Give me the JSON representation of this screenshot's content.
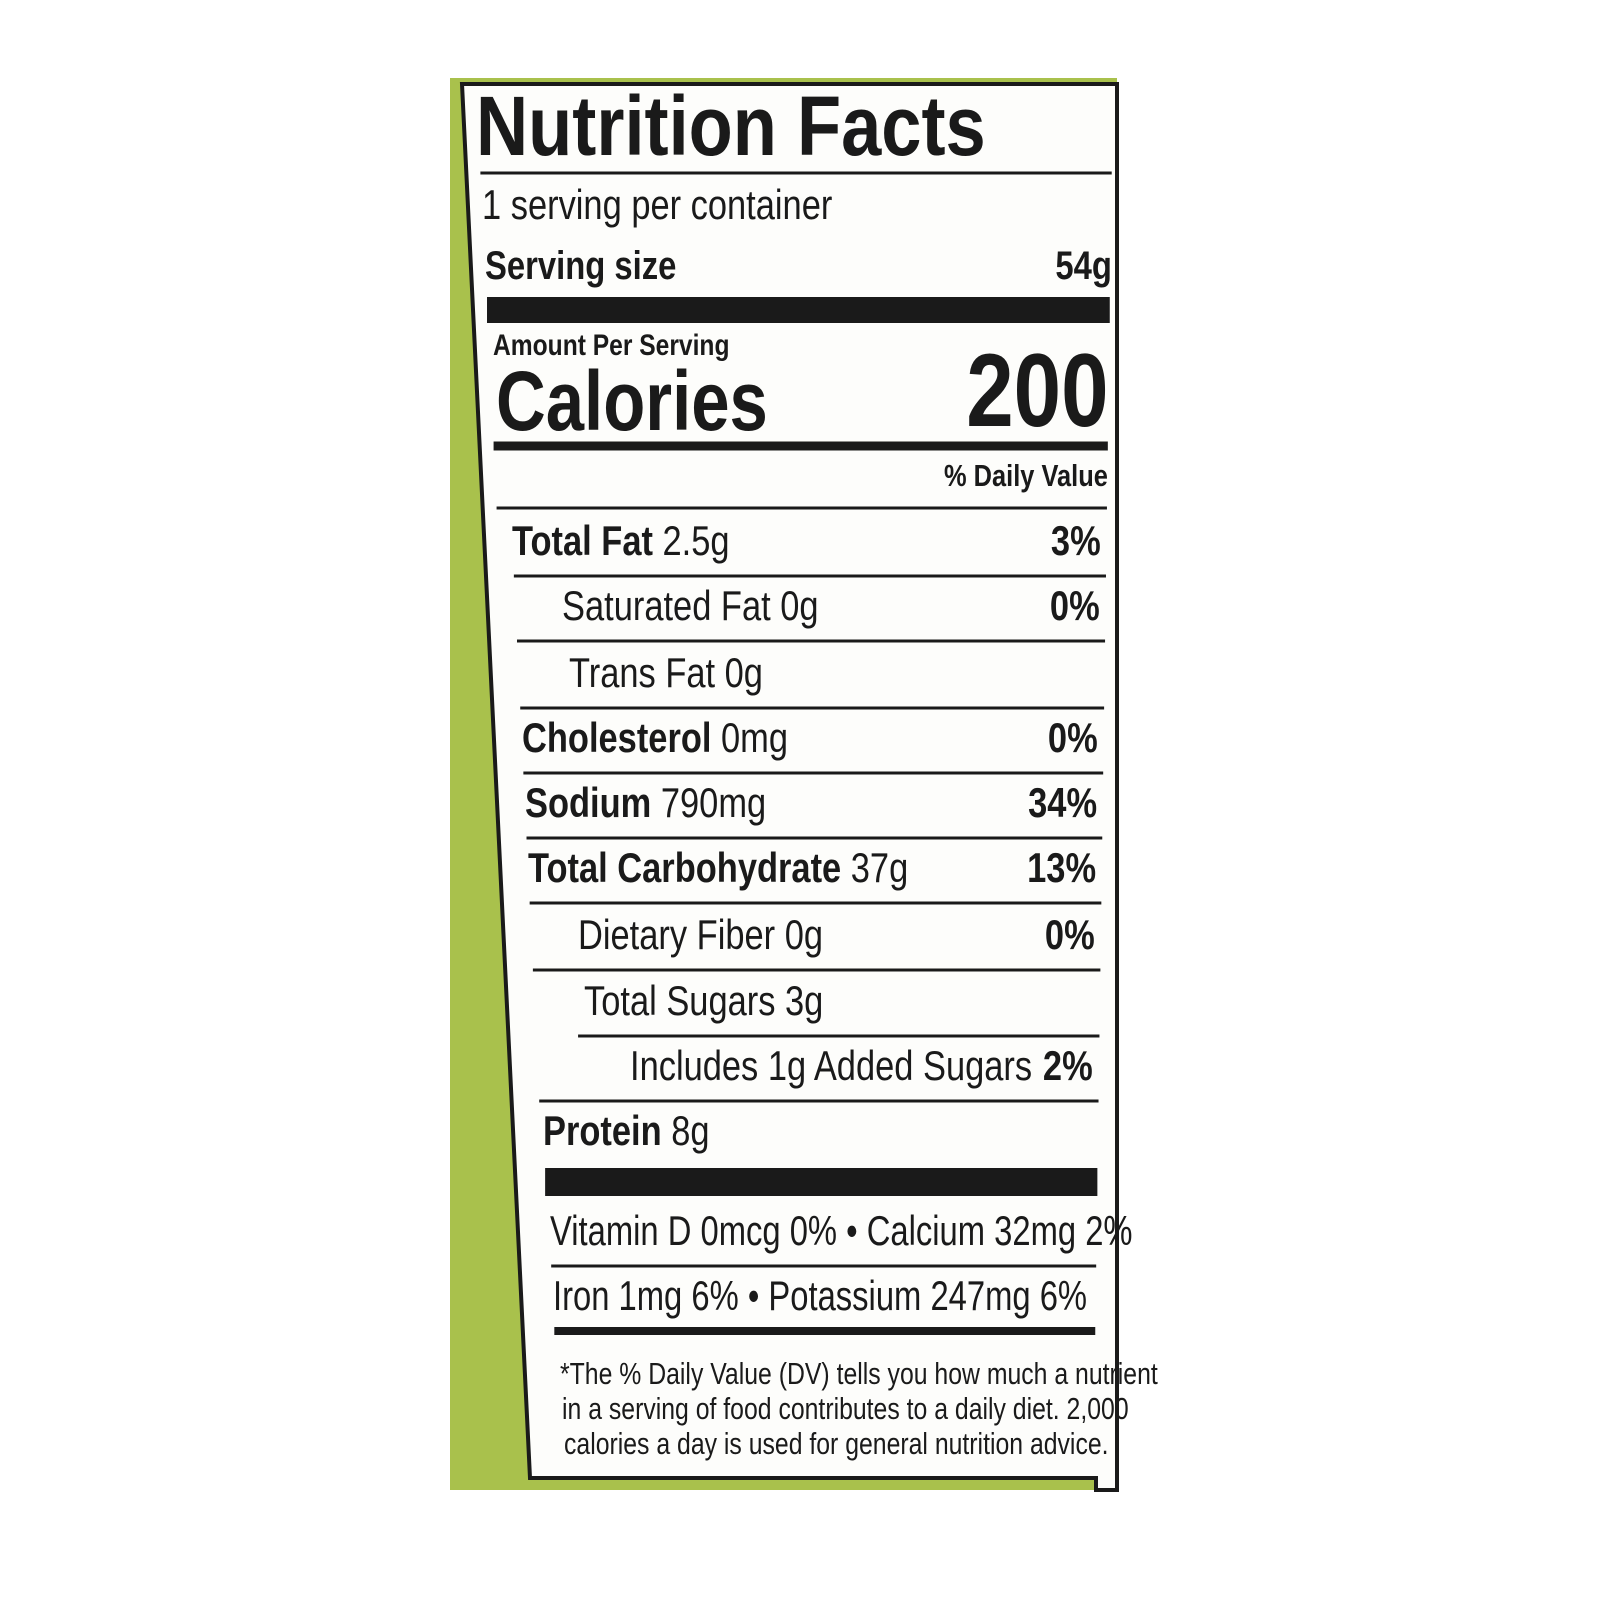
{
  "title": "Nutrition Facts",
  "servings_per_container": "1 serving per container",
  "serving_size_label": "Serving size",
  "serving_size": "54g",
  "amount_per_serving": "Amount Per Serving",
  "calories_label": "Calories",
  "calories": "200",
  "daily_value_header": "% Daily Value",
  "nutrients": [
    {
      "name": "Total Fat",
      "amount": "2.5g",
      "dv": "3%"
    },
    {
      "name": "Saturated Fat 0g",
      "dv": "0%"
    },
    {
      "name": "Trans Fat 0g"
    },
    {
      "name": "Cholesterol",
      "amount": "0mg",
      "dv": "0%"
    },
    {
      "name": "Sodium",
      "amount": "790mg",
      "dv": "34%"
    },
    {
      "name": "Total Carbohydrate",
      "amount": "37g",
      "dv": "13%"
    },
    {
      "name": "Dietary Fiber 0g",
      "dv": "0%"
    },
    {
      "name": "Total Sugars 3g"
    },
    {
      "name": "Includes 1g Added Sugars",
      "dv": "2%"
    },
    {
      "name": "Protein",
      "amount": "8g"
    }
  ],
  "vitamins": [
    "Vitamin D 0mcg 0% • Calcium 32mg 2%",
    "Iron 1mg 6% • Potassium 247mg 6%"
  ],
  "footnote": [
    "*The % Daily Value (DV) tells you how much a nutrient",
    "in a serving of food contributes to a daily diet. 2,000",
    "calories a day is used for general nutrition advice."
  ]
}
